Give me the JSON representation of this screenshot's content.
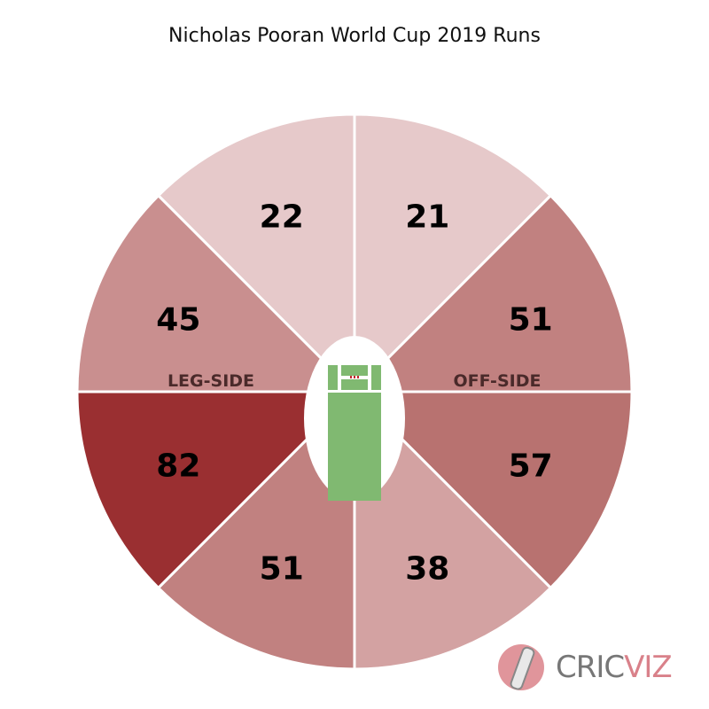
{
  "chart_data": {
    "type": "pie",
    "title": "Nicholas Pooran World Cup 2019 Runs",
    "sectors": [
      {
        "region": "fine-leg-straight",
        "value": 22,
        "color": "#e6c9ca"
      },
      {
        "region": "off-straight",
        "value": 21,
        "color": "#e6c9ca"
      },
      {
        "region": "off-upper",
        "value": 51,
        "color": "#c18180"
      },
      {
        "region": "off-lower",
        "value": 57,
        "color": "#b87270"
      },
      {
        "region": "off-behind",
        "value": 38,
        "color": "#d3a2a2"
      },
      {
        "region": "leg-behind",
        "value": 51,
        "color": "#c18180"
      },
      {
        "region": "leg-lower",
        "value": 82,
        "color": "#9a2f31"
      },
      {
        "region": "leg-upper",
        "value": 45,
        "color": "#c98f8f"
      }
    ],
    "side_labels": {
      "leg": "LEG-SIDE",
      "off": "OFF-SIDE"
    },
    "pitch_color": "#80b971"
  },
  "logo": {
    "part1": "CRIC",
    "part2": "VIZ"
  }
}
